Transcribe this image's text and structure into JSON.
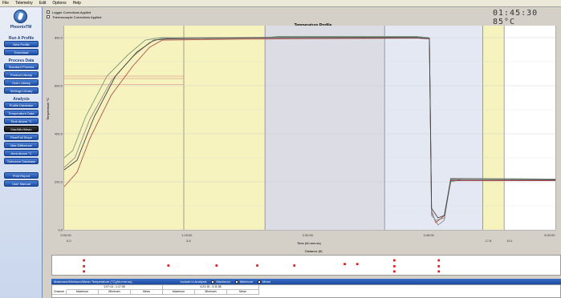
{
  "menu": [
    "File",
    "Telemetry",
    "Edit",
    "Options",
    "Help"
  ],
  "sidebar": {
    "brand": "PhoenixTM",
    "sections": [
      {
        "title": "Run A Profile",
        "buttons": [
          "New Profile",
          "Download"
        ]
      },
      {
        "title": "Process Data",
        "buttons": [
          "Standard Process",
          "Product Library",
          "Oven Library",
          "Settings Library"
        ]
      },
      {
        "title": "Analysis",
        "buttons": [
          "Profile Database",
          "Temperature Data",
          "Time Above °C",
          "Max/Min/Mean",
          "Rise/Fall Slope",
          "Max Difference",
          "Area Above °C",
          "Tolerance Database"
        ]
      },
      {
        "title": "",
        "buttons": [
          "Print Report",
          "User Manual"
        ]
      }
    ],
    "active_button": "Max/Min/Mean"
  },
  "legend": [
    "Logger Corrections Applied",
    "Thermocouple Corrections Applied"
  ],
  "clock": "01:45:30  85°C",
  "chart_title": "Temperature Profile",
  "ylabel": "Temperature °C",
  "xlabel": "Time (hh:mm:ss)",
  "distance_title": "Distance (ft)",
  "colors": {
    "zone_yellow": "#f7f3be",
    "zone_grey": "#dcdde4",
    "zone_blue": "#e4e8f2",
    "accent": "#1e4fa8"
  },
  "chart_data": {
    "type": "line",
    "y_ticks": [
      "0.0",
      "200.0",
      "400.0",
      "600.0",
      "800.0"
    ],
    "ylim": [
      0,
      850
    ],
    "x_ticks": [
      "0:00:00",
      "1:15:00",
      "2:30:00",
      "3:45:00",
      "5:00:00"
    ],
    "distance_ticks": [
      "0.0",
      "3.8",
      "17.8",
      "19.1"
    ],
    "series": [
      {
        "color": "#7a9a7a",
        "values": [
          [
            0,
            300
          ],
          [
            4,
            330
          ],
          [
            10,
            470
          ],
          [
            20,
            640
          ],
          [
            30,
            730
          ],
          [
            38,
            790
          ],
          [
            45,
            800
          ],
          [
            95,
            800
          ],
          [
            100,
            805
          ],
          [
            165,
            805
          ],
          [
            171,
            800
          ],
          [
            172,
            60
          ],
          [
            174,
            40
          ],
          [
            178,
            50
          ],
          [
            181,
            200
          ],
          [
            186,
            210
          ],
          [
            230,
            210
          ]
        ]
      },
      {
        "color": "#b05050",
        "values": [
          [
            0,
            180
          ],
          [
            6,
            240
          ],
          [
            12,
            380
          ],
          [
            22,
            560
          ],
          [
            32,
            680
          ],
          [
            40,
            760
          ],
          [
            46,
            790
          ],
          [
            100,
            795
          ],
          [
            165,
            798
          ],
          [
            171,
            795
          ],
          [
            172,
            80
          ],
          [
            174,
            30
          ],
          [
            178,
            60
          ],
          [
            181,
            205
          ],
          [
            186,
            205
          ],
          [
            230,
            205
          ]
        ]
      },
      {
        "color": "#909090",
        "values": [
          [
            0,
            260
          ],
          [
            5,
            300
          ],
          [
            12,
            460
          ],
          [
            22,
            620
          ],
          [
            32,
            720
          ],
          [
            40,
            780
          ],
          [
            46,
            798
          ],
          [
            100,
            802
          ],
          [
            165,
            802
          ],
          [
            171,
            798
          ],
          [
            172,
            70
          ],
          [
            175,
            20
          ],
          [
            178,
            40
          ],
          [
            181,
            215
          ],
          [
            230,
            212
          ]
        ]
      },
      {
        "color": "#404040",
        "values": [
          [
            0,
            250
          ],
          [
            6,
            290
          ],
          [
            14,
            470
          ],
          [
            24,
            640
          ],
          [
            34,
            740
          ],
          [
            42,
            790
          ],
          [
            48,
            795
          ],
          [
            100,
            800
          ],
          [
            165,
            800
          ],
          [
            171,
            796
          ],
          [
            172,
            90
          ],
          [
            175,
            50
          ],
          [
            178,
            60
          ],
          [
            181,
            210
          ],
          [
            230,
            208
          ]
        ]
      }
    ],
    "hlines": [
      {
        "y": 630,
        "color": "#d08080"
      },
      {
        "y": 640,
        "color": "#d08080"
      },
      {
        "y": 605,
        "color": "#d08080"
      }
    ]
  },
  "table": {
    "title": "Maximum/Minimum/Mean Temperature (°C)(hh:mm:ss)",
    "include_label": "Include in Analysis",
    "checks": [
      "Maximum",
      "Minimum",
      "Mean"
    ],
    "range1": "1:07:13 - 1:17:05",
    "range2": "4:21:15 - 3:11:08",
    "headers": [
      "Channel",
      "Maximum",
      "Minimum",
      "Mean",
      "Maximum",
      "Minimum",
      "Mean"
    ]
  }
}
